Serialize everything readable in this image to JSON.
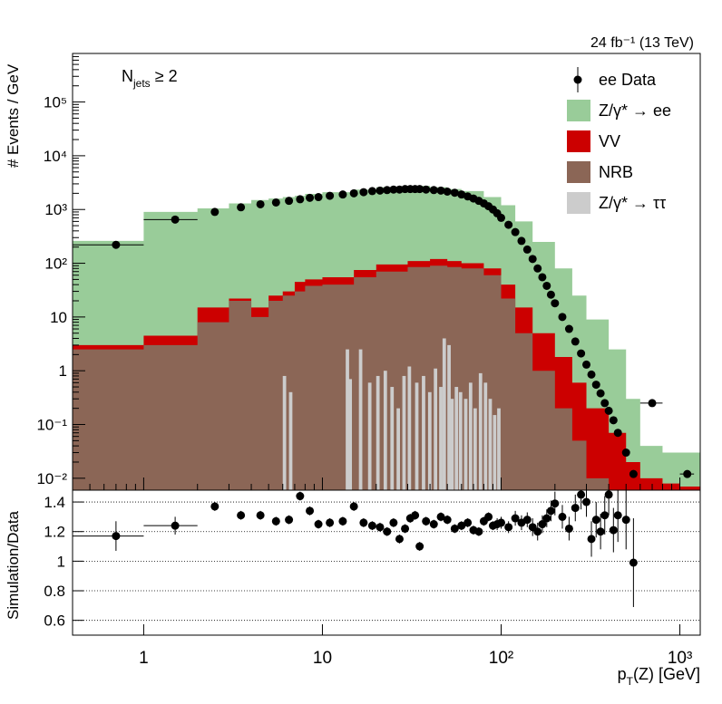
{
  "chart_data": {
    "type": "area",
    "lumi_label": "24 fb⁻¹ (13 TeV)",
    "selection_label": "N",
    "selection_sub": "jets",
    "selection_cut": "≥ 2",
    "xlabel": "p",
    "xlabel_sub": "T",
    "xlabel_rest": "(Z) [GeV]",
    "ylabel": "# Events / GeV",
    "ratio_ylabel": "Simulation/Data",
    "xscale": "log",
    "xlim": [
      0.4,
      1300
    ],
    "ylim": [
      0.006,
      800000
    ],
    "ratio_ylim": [
      0.5,
      1.48
    ],
    "x_ticks": [
      "1",
      "10",
      "10²",
      "10³"
    ],
    "y_ticks": [
      "10⁻²",
      "10⁻¹",
      "1",
      "10",
      "10²",
      "10³",
      "10⁴",
      "10⁵"
    ],
    "ratio_ticks": [
      "0.6",
      "0.8",
      "1",
      "1.2",
      "1.4"
    ],
    "legend": [
      {
        "label": "ee Data",
        "style": "marker",
        "color": "#000000"
      },
      {
        "label": "Z/γ* → ee",
        "style": "fill",
        "color": "#99cc99"
      },
      {
        "label": "VV",
        "style": "fill",
        "color": "#cc0000"
      },
      {
        "label": "NRB",
        "style": "fill",
        "color": "#8b6656"
      },
      {
        "label": "Z/γ* → ττ",
        "style": "fill",
        "color": "#cccccc"
      }
    ],
    "colors": {
      "dy_ee": "#99cc99",
      "vv": "#cc0000",
      "nrb": "#8b6656",
      "dy_tautau": "#cccccc"
    },
    "stack_totals": {
      "x": [
        0.4,
        1,
        2,
        3,
        4,
        5,
        6,
        7,
        8,
        10,
        15,
        20,
        30,
        40,
        50,
        60,
        80,
        100,
        120,
        150,
        200,
        250,
        300,
        400,
        500,
        600,
        800,
        1000,
        1300
      ],
      "dy_ee": [
        260,
        900,
        1050,
        1300,
        1500,
        1600,
        1700,
        1800,
        1950,
        2100,
        2350,
        2600,
        2750,
        2600,
        2400,
        2200,
        1700,
        1200,
        600,
        250,
        80,
        25,
        9,
        2.5,
        0.3,
        0.04,
        0.03,
        0.03
      ],
      "vv": [
        3,
        4.5,
        15,
        22,
        15,
        25,
        30,
        45,
        50,
        55,
        75,
        95,
        110,
        120,
        110,
        100,
        80,
        40,
        15,
        5,
        1.8,
        0.6,
        0.2,
        0.07,
        0.02,
        0.01,
        0.008,
        0.007
      ],
      "nrb": [
        2.5,
        3,
        8,
        20,
        10,
        20,
        25,
        30,
        38,
        40,
        55,
        70,
        85,
        90,
        85,
        80,
        60,
        22,
        5,
        1,
        0.2,
        0.05,
        0.01,
        0.006,
        0.006,
        0.006,
        0.006,
        0.006
      ]
    },
    "data_points": {
      "x": [
        0.7,
        1.5,
        2.5,
        3.5,
        4.5,
        5.5,
        6.5,
        7.5,
        8.5,
        9.5,
        11,
        13,
        15,
        17,
        19,
        21,
        23,
        25,
        27,
        29,
        31,
        33,
        35,
        38,
        42,
        46,
        50,
        55,
        60,
        65,
        70,
        75,
        80,
        85,
        90,
        95,
        100,
        110,
        120,
        130,
        140,
        150,
        160,
        170,
        180,
        190,
        200,
        220,
        240,
        260,
        280,
        300,
        320,
        340,
        360,
        380,
        400,
        425,
        450,
        500,
        550,
        700,
        1100
      ],
      "y": [
        220,
        650,
        900,
        1100,
        1250,
        1350,
        1450,
        1550,
        1650,
        1700,
        1800,
        1900,
        2000,
        2100,
        2200,
        2250,
        2300,
        2350,
        2350,
        2400,
        2400,
        2400,
        2400,
        2350,
        2300,
        2250,
        2150,
        2050,
        1900,
        1750,
        1600,
        1450,
        1300,
        1150,
        1000,
        850,
        700,
        520,
        380,
        260,
        180,
        120,
        80,
        55,
        38,
        26,
        18,
        10,
        6,
        3.5,
        2.1,
        1.3,
        0.85,
        0.55,
        0.38,
        0.25,
        0.18,
        0.12,
        0.07,
        0.03,
        0.012,
        0.25,
        0.012
      ],
      "xerr_low": [
        0.3,
        0.5,
        null,
        null,
        null,
        null,
        null,
        null,
        null,
        null,
        null,
        null,
        null,
        null,
        null,
        null,
        null,
        null,
        null,
        null,
        null,
        null,
        null,
        null,
        null,
        null,
        null,
        null,
        null,
        null,
        null,
        null,
        null,
        null,
        null,
        null,
        null,
        null,
        null,
        null,
        null,
        null,
        null,
        null,
        null,
        null,
        null,
        null,
        null,
        null,
        null,
        null,
        null,
        null,
        null,
        null,
        null,
        null,
        null,
        null,
        null,
        100,
        100
      ],
      "xerr_high": [
        0.3,
        0.5,
        null,
        null,
        null,
        null,
        null,
        null,
        null,
        null,
        null,
        null,
        null,
        null,
        null,
        null,
        null,
        null,
        null,
        null,
        null,
        null,
        null,
        null,
        null,
        null,
        null,
        null,
        null,
        null,
        null,
        null,
        null,
        null,
        null,
        null,
        null,
        null,
        null,
        null,
        null,
        null,
        null,
        null,
        null,
        null,
        null,
        null,
        null,
        null,
        null,
        null,
        null,
        null,
        null,
        null,
        null,
        null,
        null,
        null,
        null,
        100,
        100
      ]
    },
    "tautau_spikes": {
      "x": [
        6,
        6.5,
        13.5,
        14,
        16,
        18,
        20,
        22,
        24,
        26,
        28,
        30,
        33,
        36,
        39,
        42,
        45,
        47,
        50,
        52,
        55,
        58,
        62,
        66,
        70,
        75,
        80,
        85,
        90,
        95
      ],
      "y": [
        0.8,
        0.4,
        2.5,
        0.7,
        2.5,
        0.6,
        0.8,
        1.0,
        0.5,
        0.2,
        0.8,
        1.2,
        0.6,
        0.8,
        0.4,
        1.1,
        0.5,
        4,
        3,
        0.3,
        0.5,
        0.4,
        0.3,
        0.6,
        0.2,
        0.9,
        0.6,
        0.3,
        0.15,
        0.2
      ]
    },
    "ratio_points": {
      "x": [
        0.7,
        1.5,
        2.5,
        3.5,
        4.5,
        5.5,
        6.5,
        7.5,
        8.5,
        9.5,
        11,
        13,
        15,
        17,
        19,
        21,
        23,
        25,
        27,
        29,
        31,
        33,
        35,
        38,
        42,
        46,
        50,
        55,
        60,
        65,
        70,
        75,
        80,
        85,
        90,
        95,
        100,
        110,
        120,
        130,
        140,
        150,
        160,
        170,
        180,
        190,
        200,
        220,
        240,
        260,
        280,
        300,
        320,
        340,
        360,
        380,
        400,
        425,
        450,
        500,
        550
      ],
      "y": [
        1.17,
        1.24,
        1.37,
        1.31,
        1.31,
        1.27,
        1.28,
        1.44,
        1.34,
        1.25,
        1.26,
        1.27,
        1.37,
        1.26,
        1.24,
        1.23,
        1.2,
        1.26,
        1.15,
        1.22,
        1.29,
        1.31,
        1.1,
        1.27,
        1.25,
        1.3,
        1.28,
        1.22,
        1.24,
        1.26,
        1.21,
        1.2,
        1.27,
        1.3,
        1.24,
        1.25,
        1.26,
        1.23,
        1.29,
        1.26,
        1.28,
        1.23,
        1.2,
        1.25,
        1.29,
        1.34,
        1.39,
        1.3,
        1.22,
        1.36,
        1.45,
        1.4,
        1.15,
        1.28,
        1.2,
        1.31,
        1.45,
        1.21,
        1.31,
        1.28,
        0.99
      ],
      "err": [
        0.1,
        0.06,
        0.03,
        0.03,
        0.03,
        0.03,
        0.03,
        0.03,
        0.03,
        0.03,
        0.03,
        0.03,
        0.03,
        0.03,
        0.03,
        0.03,
        0.03,
        0.03,
        0.03,
        0.03,
        0.03,
        0.03,
        0.03,
        0.03,
        0.03,
        0.03,
        0.03,
        0.03,
        0.03,
        0.03,
        0.03,
        0.03,
        0.03,
        0.03,
        0.03,
        0.04,
        0.04,
        0.04,
        0.05,
        0.05,
        0.05,
        0.06,
        0.06,
        0.06,
        0.06,
        0.07,
        0.08,
        0.08,
        0.08,
        0.09,
        0.1,
        0.1,
        0.12,
        0.12,
        0.12,
        0.13,
        0.14,
        0.15,
        0.18,
        0.2,
        0.3
      ]
    }
  }
}
